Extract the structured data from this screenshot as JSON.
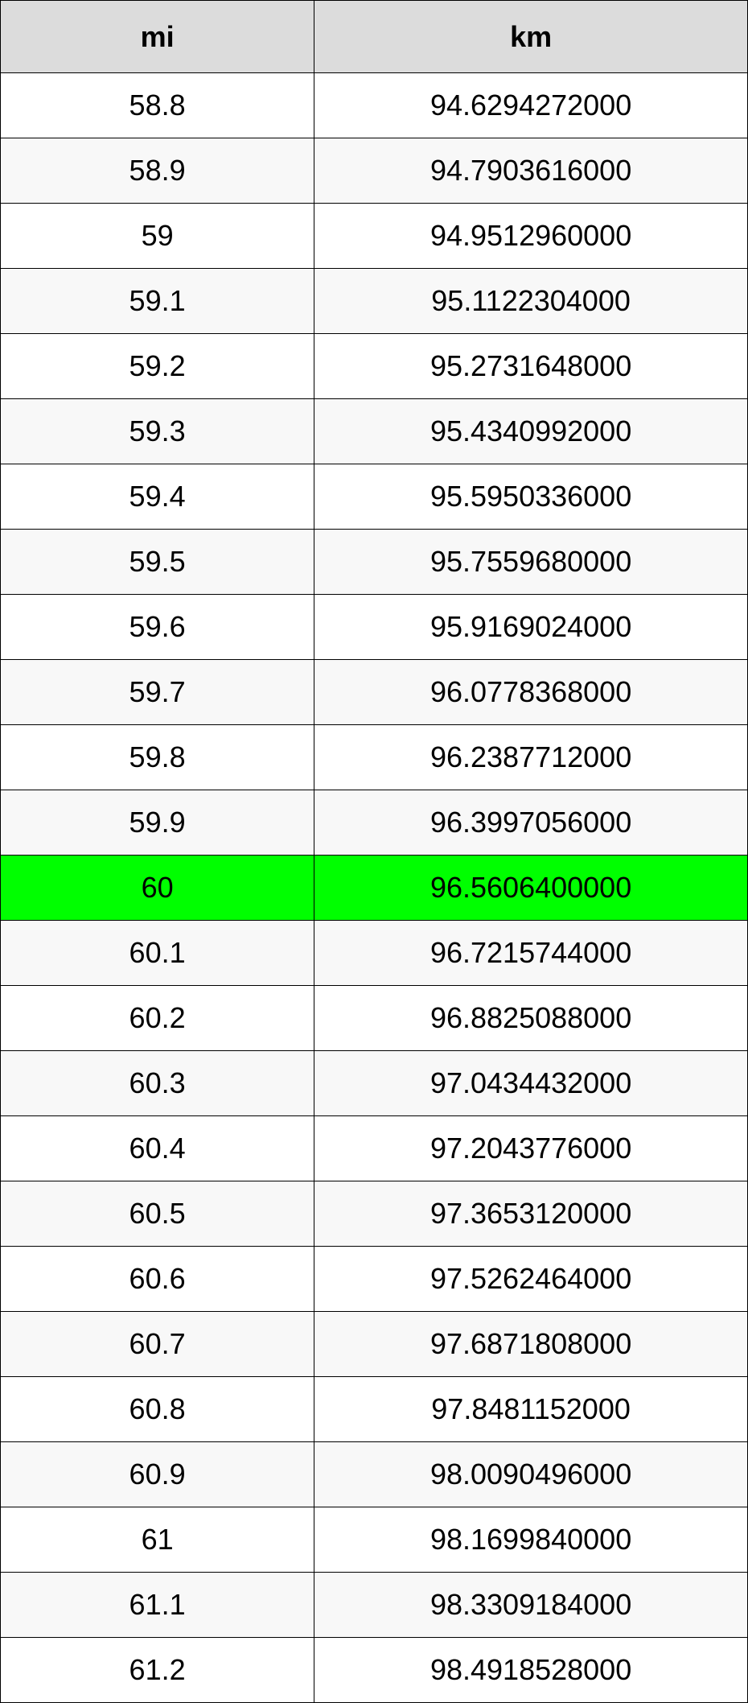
{
  "table": {
    "type": "table",
    "columns": [
      {
        "key": "mi",
        "label": "mi",
        "align": "center",
        "width_pct": 42
      },
      {
        "key": "km",
        "label": "km",
        "align": "center",
        "width_pct": 58
      }
    ],
    "header_background": "#dcdcdc",
    "header_fontweight": "bold",
    "border_color": "#000000",
    "row_even_background": "#ffffff",
    "row_odd_background": "#f8f8f8",
    "highlight_background": "#00ff00",
    "font_size_pt": 27,
    "rows": [
      {
        "mi": "58.8",
        "km": "94.6294272000",
        "highlight": false
      },
      {
        "mi": "58.9",
        "km": "94.7903616000",
        "highlight": false
      },
      {
        "mi": "59",
        "km": "94.9512960000",
        "highlight": false
      },
      {
        "mi": "59.1",
        "km": "95.1122304000",
        "highlight": false
      },
      {
        "mi": "59.2",
        "km": "95.2731648000",
        "highlight": false
      },
      {
        "mi": "59.3",
        "km": "95.4340992000",
        "highlight": false
      },
      {
        "mi": "59.4",
        "km": "95.5950336000",
        "highlight": false
      },
      {
        "mi": "59.5",
        "km": "95.7559680000",
        "highlight": false
      },
      {
        "mi": "59.6",
        "km": "95.9169024000",
        "highlight": false
      },
      {
        "mi": "59.7",
        "km": "96.0778368000",
        "highlight": false
      },
      {
        "mi": "59.8",
        "km": "96.2387712000",
        "highlight": false
      },
      {
        "mi": "59.9",
        "km": "96.3997056000",
        "highlight": false
      },
      {
        "mi": "60",
        "km": "96.5606400000",
        "highlight": true
      },
      {
        "mi": "60.1",
        "km": "96.7215744000",
        "highlight": false
      },
      {
        "mi": "60.2",
        "km": "96.8825088000",
        "highlight": false
      },
      {
        "mi": "60.3",
        "km": "97.0434432000",
        "highlight": false
      },
      {
        "mi": "60.4",
        "km": "97.2043776000",
        "highlight": false
      },
      {
        "mi": "60.5",
        "km": "97.3653120000",
        "highlight": false
      },
      {
        "mi": "60.6",
        "km": "97.5262464000",
        "highlight": false
      },
      {
        "mi": "60.7",
        "km": "97.6871808000",
        "highlight": false
      },
      {
        "mi": "60.8",
        "km": "97.8481152000",
        "highlight": false
      },
      {
        "mi": "60.9",
        "km": "98.0090496000",
        "highlight": false
      },
      {
        "mi": "61",
        "km": "98.1699840000",
        "highlight": false
      },
      {
        "mi": "61.1",
        "km": "98.3309184000",
        "highlight": false
      },
      {
        "mi": "61.2",
        "km": "98.4918528000",
        "highlight": false
      }
    ]
  }
}
